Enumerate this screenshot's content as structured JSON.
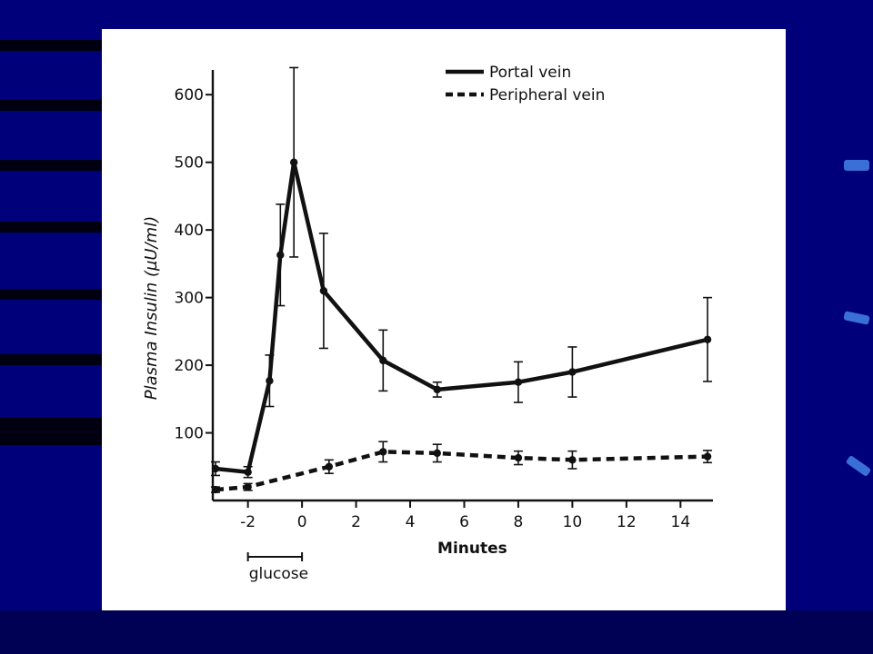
{
  "colors": {
    "slide_background": "#00007a",
    "accent": "#3a6fd8",
    "figure_background": "#ffffff",
    "ink": "#111111"
  },
  "chart_data": {
    "type": "line",
    "title": "",
    "xlabel": "Minutes",
    "ylabel": "Plasma Insulin (µU/ml)",
    "xlim": [
      -3.3,
      15.2
    ],
    "ylim": [
      0,
      650
    ],
    "x_ticks": [
      -2,
      0,
      2,
      4,
      6,
      8,
      10,
      12,
      14
    ],
    "x_tick_labels": [
      "-2",
      "0",
      "2",
      "4",
      "6",
      "8",
      "10",
      "12",
      "14"
    ],
    "y_ticks": [
      100,
      200,
      300,
      400,
      500,
      600
    ],
    "y_tick_labels": [
      "100",
      "200",
      "300",
      "400",
      "500",
      "600"
    ],
    "grid": false,
    "legend_position": "top-right",
    "annotation": {
      "label": "glucose",
      "x_start": -2,
      "x_end": 0
    },
    "series": [
      {
        "name": "Portal vein",
        "style": "solid",
        "points": [
          {
            "x": -3.2,
            "y": 47,
            "err": 10
          },
          {
            "x": -2,
            "y": 42,
            "err": 8
          },
          {
            "x": -1.2,
            "y": 177,
            "err": 38
          },
          {
            "x": -0.8,
            "y": 363,
            "err": 75
          },
          {
            "x": -0.3,
            "y": 500,
            "err": 140
          },
          {
            "x": 0.8,
            "y": 310,
            "err": 85
          },
          {
            "x": 3,
            "y": 207,
            "err": 45
          },
          {
            "x": 5,
            "y": 164,
            "err": 11
          },
          {
            "x": 8,
            "y": 175,
            "err": 30
          },
          {
            "x": 10,
            "y": 190,
            "err": 37
          },
          {
            "x": 15,
            "y": 238,
            "err": 62
          }
        ]
      },
      {
        "name": "Peripheral vein",
        "style": "dashed",
        "points": [
          {
            "x": -3.2,
            "y": 16,
            "err": 4
          },
          {
            "x": -2,
            "y": 20,
            "err": 5
          },
          {
            "x": 1,
            "y": 50,
            "err": 10
          },
          {
            "x": 3,
            "y": 72,
            "err": 15
          },
          {
            "x": 5,
            "y": 70,
            "err": 13
          },
          {
            "x": 8,
            "y": 63,
            "err": 10
          },
          {
            "x": 10,
            "y": 60,
            "err": 13
          },
          {
            "x": 15,
            "y": 65,
            "err": 9
          }
        ]
      }
    ]
  }
}
